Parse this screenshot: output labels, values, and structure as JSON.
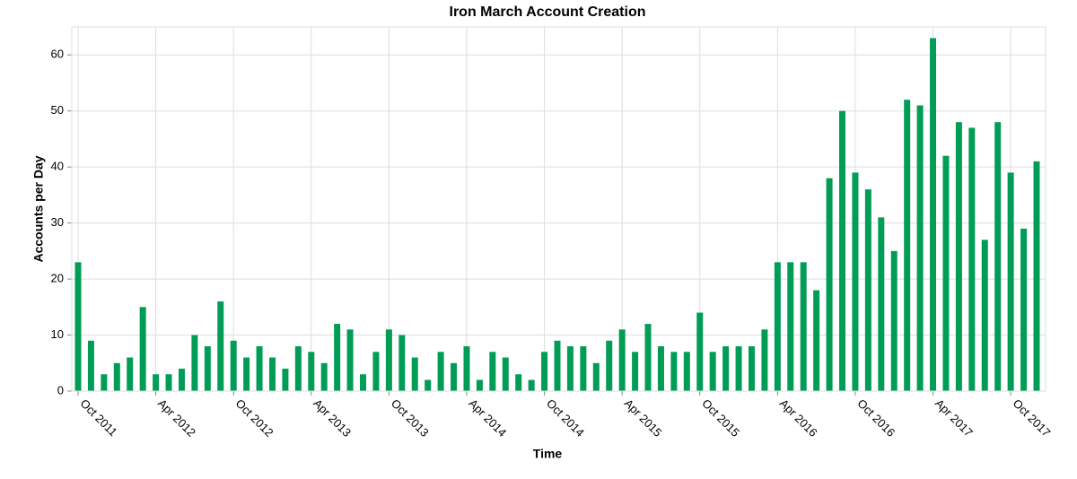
{
  "chart_data": {
    "type": "bar",
    "title": "Iron March Account Creation",
    "x_label": "Time",
    "y_label": "Accounts per Day",
    "color": "#019d57",
    "grid": true,
    "x": [
      "2011-10",
      "2011-11",
      "2011-12",
      "2012-01",
      "2012-02",
      "2012-03",
      "2012-04",
      "2012-05",
      "2012-06",
      "2012-07",
      "2012-08",
      "2012-09",
      "2012-10",
      "2012-11",
      "2012-12",
      "2013-01",
      "2013-02",
      "2013-03",
      "2013-04",
      "2013-05",
      "2013-06",
      "2013-07",
      "2013-08",
      "2013-09",
      "2013-10",
      "2013-11",
      "2013-12",
      "2014-01",
      "2014-02",
      "2014-03",
      "2014-04",
      "2014-05",
      "2014-06",
      "2014-07",
      "2014-08",
      "2014-09",
      "2014-10",
      "2014-11",
      "2014-12",
      "2015-01",
      "2015-02",
      "2015-03",
      "2015-04",
      "2015-05",
      "2015-06",
      "2015-07",
      "2015-08",
      "2015-09",
      "2015-10",
      "2015-11",
      "2015-12",
      "2016-01",
      "2016-02",
      "2016-03",
      "2016-04",
      "2016-05",
      "2016-06",
      "2016-07",
      "2016-08",
      "2016-09",
      "2016-10",
      "2016-11",
      "2016-12",
      "2017-01",
      "2017-02",
      "2017-03",
      "2017-04",
      "2017-05",
      "2017-06",
      "2017-07",
      "2017-08",
      "2017-09",
      "2017-10",
      "2017-11",
      "2017-12"
    ],
    "values": [
      23,
      9,
      3,
      5,
      6,
      15,
      3,
      3,
      4,
      10,
      8,
      16,
      9,
      6,
      8,
      6,
      4,
      8,
      7,
      5,
      12,
      11,
      3,
      7,
      11,
      10,
      6,
      2,
      7,
      5,
      8,
      2,
      7,
      6,
      3,
      2,
      7,
      9,
      8,
      8,
      5,
      9,
      11,
      7,
      12,
      8,
      7,
      7,
      14,
      7,
      8,
      8,
      8,
      11,
      23,
      23,
      23,
      18,
      38,
      50,
      39,
      36,
      31,
      25,
      52,
      51,
      63,
      42,
      48,
      47,
      27,
      48,
      39,
      29,
      41
    ],
    "xticks": [
      {
        "value": "2011-10",
        "label": "Oct 2011"
      },
      {
        "value": "2012-04",
        "label": "Apr 2012"
      },
      {
        "value": "2012-10",
        "label": "Oct 2012"
      },
      {
        "value": "2013-04",
        "label": "Apr 2013"
      },
      {
        "value": "2013-10",
        "label": "Oct 2013"
      },
      {
        "value": "2014-04",
        "label": "Apr 2014"
      },
      {
        "value": "2014-10",
        "label": "Oct 2014"
      },
      {
        "value": "2015-04",
        "label": "Apr 2015"
      },
      {
        "value": "2015-10",
        "label": "Oct 2015"
      },
      {
        "value": "2016-04",
        "label": "Apr 2016"
      },
      {
        "value": "2016-10",
        "label": "Oct 2016"
      },
      {
        "value": "2017-04",
        "label": "Apr 2017"
      },
      {
        "value": "2017-10",
        "label": "Oct 2017"
      }
    ],
    "ylim": [
      0,
      65
    ],
    "yticks": [
      0,
      10,
      20,
      30,
      40,
      50,
      60
    ]
  }
}
